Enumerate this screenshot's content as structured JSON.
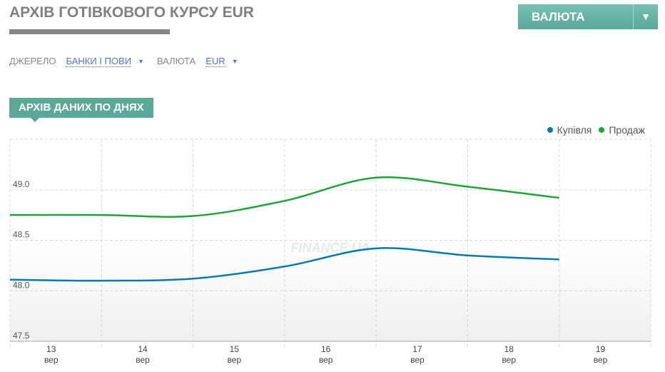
{
  "header": {
    "title": "АРХІВ ГОТІВКОВОГО КУРСУ EUR",
    "currency_button": "ВАЛЮТА",
    "dropdown_arrow": "▼"
  },
  "filters": {
    "source_label": "ДЖЕРЕЛО",
    "source_value": "БАНКИ І ПОВИ",
    "currency_label": "ВАЛЮТА",
    "currency_value": "EUR",
    "arrow": "▼"
  },
  "section_tag": "АРХІВ ДАНИХ ПО ДНЯХ",
  "colors": {
    "buy": "#0a7aab",
    "sell": "#1fa33a",
    "accent": "#5aa898"
  },
  "chart_data": {
    "type": "line",
    "watermark": "FINANCE.UA",
    "x": [
      "13",
      "14",
      "15",
      "16",
      "17",
      "18",
      "19"
    ],
    "x_sublabel": "вер",
    "ylim": [
      47.5,
      49.5
    ],
    "yticks": [
      47.5,
      48.0,
      48.5,
      49.0
    ],
    "ytick_labels": [
      "47.5",
      "48.0",
      "48.5",
      "49.0"
    ],
    "grid": true,
    "legend_position": "top-right",
    "series": [
      {
        "name": "Купівля",
        "color": "#0a7aab",
        "values": [
          48.11,
          48.1,
          48.12,
          48.24,
          48.42,
          48.35,
          48.31
        ]
      },
      {
        "name": "Продаж",
        "color": "#1fa33a",
        "values": [
          48.75,
          48.75,
          48.74,
          48.89,
          49.12,
          49.03,
          48.92
        ]
      }
    ]
  }
}
